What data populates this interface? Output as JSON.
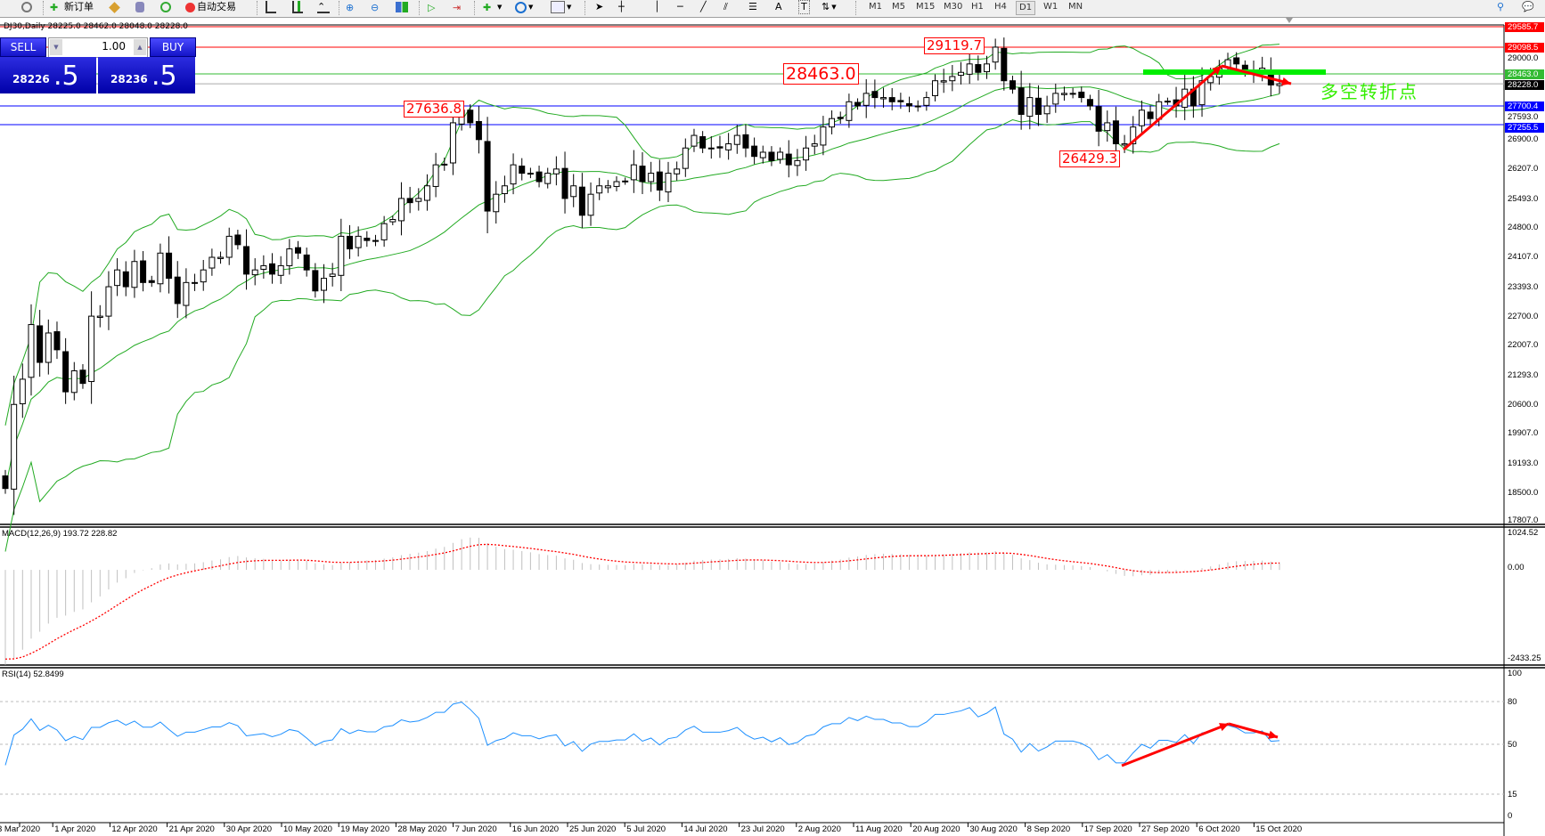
{
  "toolbar": {
    "new_order": "新订单",
    "auto_trading": "自动交易",
    "timeframes": [
      "M1",
      "M5",
      "M15",
      "M30",
      "H1",
      "H4",
      "D1",
      "W1",
      "MN"
    ],
    "active_timeframe": "D1",
    "draw_tools": [
      "A",
      "T"
    ]
  },
  "chart": {
    "title": "DJ30,Daily  28225.0 28462.0 28048.0 28228.0",
    "trade_panel": {
      "sell_label": "SELL",
      "buy_label": "BUY",
      "volume": "1.00",
      "sell_price_main": "28226",
      "sell_price_pips": ".5",
      "buy_price_main": "28236",
      "buy_price_pips": ".5"
    },
    "annotation_text": "多空转折点",
    "price_annotations": [
      {
        "text": "27636.8"
      },
      {
        "text": "28463.0"
      },
      {
        "text": "29119.7"
      },
      {
        "text": "26429.3"
      }
    ],
    "levels": [
      {
        "value": 29585.7,
        "label": "29585.7",
        "color": "#ff0000"
      },
      {
        "value": 29098.5,
        "label": "29098.5",
        "color": "#ff0000"
      },
      {
        "value": 28463.0,
        "label": "28463.0",
        "color": "#33bb33"
      },
      {
        "value": 28228.0,
        "label": "28228.0",
        "color": "#000000"
      },
      {
        "value": 27700.4,
        "label": "27700.4",
        "color": "#0000ff"
      },
      {
        "value": 27255.5,
        "label": "27255.5",
        "color": "#0000ff"
      }
    ],
    "price_ticks": [
      "29000.0",
      "27593.0",
      "26900.0",
      "26207.0",
      "25493.0",
      "24800.0",
      "24107.0",
      "23393.0",
      "22700.0",
      "22007.0",
      "21293.0",
      "20600.0",
      "19907.0",
      "19193.0",
      "18500.0",
      "17807.0"
    ],
    "date_labels": [
      "3 Mar 2020",
      "1 Apr 2020",
      "12 Apr 2020",
      "21 Apr 2020",
      "30 Apr 2020",
      "10 May 2020",
      "19 May 2020",
      "28 May 2020",
      "7 Jun 2020",
      "16 Jun 2020",
      "25 Jun 2020",
      "5 Jul 2020",
      "14 Jul 2020",
      "23 Jul 2020",
      "2 Aug 2020",
      "11 Aug 2020",
      "20 Aug 2020",
      "30 Aug 2020",
      "8 Sep 2020",
      "17 Sep 2020",
      "27 Sep 2020",
      "6 Oct 2020",
      "15 Oct 2020"
    ]
  },
  "macd": {
    "label": "MACD(12,26,9) 193.72 228.82",
    "max_label": "1024.52",
    "zero_label": "0.00",
    "min_label": "-2433.25"
  },
  "rsi": {
    "label": "RSI(14) 52.8499",
    "ticks": [
      "100",
      "80",
      "50",
      "15",
      "0"
    ]
  },
  "chart_data": {
    "type": "candlestick",
    "symbol": "DJ30",
    "timeframe": "Daily",
    "ylim": [
      17807.0,
      29585.7
    ],
    "macd_range": [
      -2433.25,
      1024.52
    ],
    "rsi_range": [
      0,
      100
    ],
    "rsi_levels": [
      80,
      50,
      15
    ],
    "colors": {
      "bollinger": "#22aa22",
      "macd_signal": "#ff0000",
      "macd_hist": "#c0c0c0",
      "rsi": "#1e90ff",
      "arrows": "#ff0000",
      "turn_line": "#00ee00"
    },
    "closes": [
      18600,
      20600,
      21200,
      22500,
      21600,
      22300,
      21900,
      20900,
      21400,
      21100,
      22700,
      22700,
      23400,
      23800,
      23400,
      24000,
      23500,
      23500,
      24200,
      23600,
      23000,
      23500,
      23500,
      23800,
      24100,
      24100,
      24600,
      24400,
      23700,
      23800,
      23900,
      23700,
      23900,
      24300,
      24200,
      23800,
      23300,
      23600,
      23700,
      24600,
      24300,
      24600,
      24500,
      24500,
      24900,
      25000,
      25500,
      25400,
      25500,
      25800,
      26300,
      26300,
      27300,
      27600,
      27300,
      26900,
      25200,
      25600,
      25800,
      26300,
      26100,
      26100,
      25900,
      26100,
      26200,
      25500,
      25800,
      25100,
      25600,
      25800,
      25800,
      25900,
      25900,
      26300,
      25900,
      26100,
      25700,
      26100,
      26200,
      26700,
      27000,
      26700,
      26700,
      26700,
      26800,
      27000,
      26700,
      26500,
      26600,
      26400,
      26600,
      26300,
      26400,
      26700,
      26800,
      27200,
      27400,
      27400,
      27800,
      27700,
      28000,
      27900,
      27900,
      27800,
      27800,
      27700,
      27700,
      27900,
      28300,
      28300,
      28400,
      28500,
      28700,
      28500,
      28700,
      29100,
      28300,
      28100,
      27500,
      27900,
      27500,
      27700,
      28000,
      28000,
      28000,
      27900,
      27700,
      27100,
      27300,
      26800,
      26800,
      27200,
      27600,
      27400,
      27800,
      27800,
      27700,
      28100,
      27700,
      28300,
      28400,
      28600,
      28800,
      28700,
      28500,
      28500,
      28600,
      28200,
      28228
    ]
  }
}
